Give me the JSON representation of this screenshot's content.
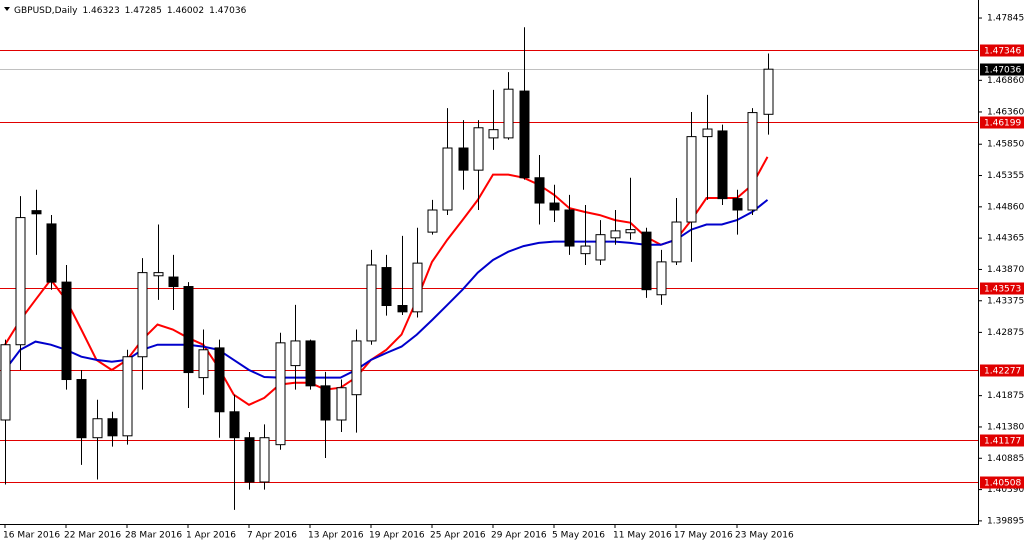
{
  "chart_data": {
    "type": "candlestick",
    "symbol_label": "GBPUSD,Daily",
    "categories": [
      "16 Mar 2016",
      null,
      null,
      null,
      "22 Mar 2016",
      null,
      null,
      null,
      "28 Mar 2016",
      null,
      null,
      null,
      "1 Apr 2016",
      null,
      null,
      null,
      "7 Apr 2016",
      null,
      null,
      null,
      "13 Apr 2016",
      null,
      null,
      null,
      "19 Apr 2016",
      null,
      null,
      null,
      "25 Apr 2016",
      null,
      null,
      null,
      "29 Apr 2016",
      null,
      null,
      null,
      "5 May 2016",
      null,
      null,
      null,
      "11 May 2016",
      null,
      null,
      null,
      "17 May 2016",
      null,
      null,
      null,
      "23 May 2016",
      null,
      null
    ],
    "open": [
      1.4149,
      1.4268,
      1.448,
      1.4459,
      1.4367,
      1.4213,
      1.4121,
      1.4151,
      1.4124,
      1.4249,
      1.4377,
      1.4375,
      1.436,
      1.4216,
      1.4263,
      1.4162,
      1.4121,
      1.4051,
      1.411,
      1.4235,
      1.4274,
      1.4203,
      1.4149,
      1.4189,
      1.4274,
      1.439,
      1.433,
      1.432,
      1.4446,
      1.4481,
      1.4579,
      1.4544,
      1.4595,
      1.4595,
      1.4669,
      1.4532,
      1.4492,
      1.4481,
      1.4412,
      1.4402,
      1.4437,
      1.4445,
      1.4446,
      1.4347,
      1.4399,
      1.4462,
      1.4597,
      1.4606,
      1.4499,
      1.4481,
      1.46323
    ],
    "high": [
      1.4276,
      1.4503,
      1.4513,
      1.4473,
      1.4394,
      1.4228,
      1.4181,
      1.4162,
      1.426,
      1.4405,
      1.4458,
      1.441,
      1.4367,
      1.4292,
      1.4276,
      1.4189,
      1.413,
      1.4142,
      1.4287,
      1.4331,
      1.4276,
      1.4225,
      1.4213,
      1.4292,
      1.4418,
      1.441,
      1.444,
      1.4453,
      1.4497,
      1.4642,
      1.4623,
      1.4623,
      1.4671,
      1.4699,
      1.477,
      1.4568,
      1.4521,
      1.4505,
      1.4489,
      1.4465,
      1.4481,
      1.4532,
      1.4453,
      1.4418,
      1.45,
      1.4636,
      1.4663,
      1.4616,
      1.4513,
      1.4642,
      1.47285
    ],
    "low": [
      1.4047,
      1.4228,
      1.441,
      1.4355,
      1.4197,
      1.4078,
      1.4055,
      1.4107,
      1.411,
      1.4197,
      1.4339,
      1.4323,
      1.4168,
      1.4189,
      1.4121,
      1.4007,
      1.4039,
      1.4039,
      1.4102,
      1.4197,
      1.4197,
      1.4089,
      1.413,
      1.4129,
      1.4268,
      1.4314,
      1.4315,
      1.4311,
      1.4442,
      1.4473,
      1.4513,
      1.4481,
      1.4576,
      1.4592,
      1.4529,
      1.4458,
      1.4462,
      1.441,
      1.4394,
      1.4394,
      1.4426,
      1.4434,
      1.4342,
      1.4331,
      1.4394,
      1.4399,
      1.4497,
      1.4489,
      1.4442,
      1.4473,
      1.46002
    ],
    "close": [
      1.4268,
      1.4469,
      1.4475,
      1.4367,
      1.4213,
      1.4121,
      1.4151,
      1.4124,
      1.4249,
      1.4382,
      1.4382,
      1.436,
      1.4224,
      1.426,
      1.4162,
      1.4121,
      1.4051,
      1.4121,
      1.4271,
      1.4274,
      1.4203,
      1.4149,
      1.42,
      1.4274,
      1.4394,
      1.433,
      1.432,
      1.4397,
      1.4481,
      1.4579,
      1.4544,
      1.4611,
      1.4608,
      1.4672,
      1.4532,
      1.4492,
      1.4481,
      1.4424,
      1.4424,
      1.4442,
      1.4448,
      1.445,
      1.4355,
      1.4399,
      1.4462,
      1.4597,
      1.4609,
      1.4499,
      1.4481,
      1.4635,
      1.47036
    ],
    "up_color": "#ffffff",
    "down_color": "#000000",
    "overlays": [
      {
        "color": "#ff0000",
        "values": [
          1.4268,
          1.4307,
          1.4339,
          1.4371,
          1.4339,
          1.4292,
          1.4244,
          1.4228,
          1.4244,
          1.4276,
          1.43,
          1.4292,
          1.4279,
          1.4268,
          1.4232,
          1.4189,
          1.4173,
          1.4184,
          1.4205,
          1.4208,
          1.4208,
          1.4197,
          1.42,
          1.4216,
          1.4244,
          1.426,
          1.4284,
          1.4339,
          1.4399,
          1.4434,
          1.4465,
          1.4497,
          1.4537,
          1.4537,
          1.4532,
          1.4521,
          1.4505,
          1.4484,
          1.4478,
          1.4473,
          1.4465,
          1.4461,
          1.4439,
          1.4426,
          1.4434,
          1.4465,
          1.45,
          1.45,
          1.45,
          1.4521,
          1.4565
        ]
      },
      {
        "color": "#0000cc",
        "values": [
          1.4228,
          1.426,
          1.4273,
          1.4268,
          1.426,
          1.4249,
          1.4244,
          1.4241,
          1.4244,
          1.426,
          1.4268,
          1.4268,
          1.4268,
          1.4265,
          1.426,
          1.4244,
          1.4228,
          1.4217,
          1.4216,
          1.4216,
          1.4216,
          1.4216,
          1.4216,
          1.4228,
          1.4244,
          1.4255,
          1.4265,
          1.4284,
          1.4307,
          1.4331,
          1.4355,
          1.4382,
          1.4402,
          1.4415,
          1.4424,
          1.4429,
          1.4431,
          1.4431,
          1.4431,
          1.4431,
          1.4431,
          1.4429,
          1.4426,
          1.4426,
          1.4434,
          1.445,
          1.4458,
          1.4458,
          1.4465,
          1.4478,
          1.4497
        ]
      }
    ],
    "levels": [
      1.47346,
      1.46199,
      1.43573,
      1.42277,
      1.41177,
      1.40508
    ],
    "level_color": "#e00000",
    "current_line_color": "#c0c0c0",
    "ylim": [
      1.3983,
      1.4813
    ],
    "yticks": [
      1.47845,
      {
        "value": 1.4686,
        "label": "1.46860"
      },
      {
        "value": 1.4636,
        "label": "1.46360"
      },
      {
        "value": 1.4585,
        "label": "1.45850"
      },
      1.45355,
      {
        "value": 1.4486,
        "label": "1.44860"
      },
      1.44365,
      {
        "value": 1.4387,
        "label": "1.43870"
      },
      1.43375,
      1.42875,
      1.41875,
      {
        "value": 1.4138,
        "label": "1.41380"
      },
      1.40885,
      {
        "value": 1.4039,
        "label": "1.40390"
      },
      1.39895
    ]
  }
}
